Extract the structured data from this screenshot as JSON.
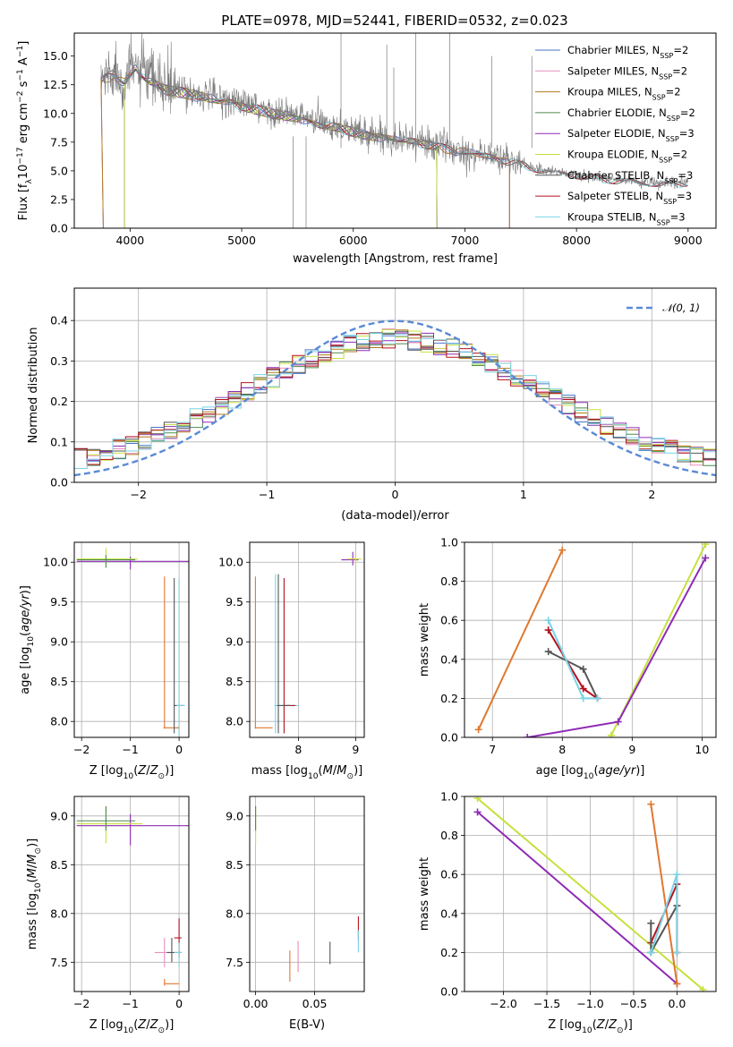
{
  "figure": {
    "title": "PLATE=0978, MJD=52441, FIBERID=0532, z=0.023"
  },
  "colors": {
    "Chabrier MILES": "#4a76c9",
    "Salpeter MILES": "#e78fbf",
    "Kroupa MILES": "#b07a1c",
    "Chabrier ELODIE": "#4e8a4e",
    "Salpeter ELODIE": "#8e2bb5",
    "Kroupa ELODIE": "#c8e040",
    "Chabrier STELIB": "#555555",
    "Salpeter STELIB": "#b3121d",
    "Kroupa STELIB": "#79d3e4",
    "data": "#7a7a7a",
    "normal": "#5a8ad6",
    "orange": "#e07830"
  },
  "chart_data": [
    {
      "type": "line",
      "id": "spectrum",
      "xlabel": "wavelength [Angstrom, rest frame]",
      "ylabel_parts": [
        "Flux [f",
        "λ",
        "10",
        "−17",
        " erg cm",
        "−2",
        " s",
        "−1",
        " A",
        "−1",
        "]"
      ],
      "xlim": [
        3500,
        9250
      ],
      "ylim": [
        0,
        17
      ],
      "xticks": [
        4000,
        5000,
        6000,
        7000,
        8000,
        9000
      ],
      "yticks": [
        0.0,
        2.5,
        5.0,
        7.5,
        10.0,
        12.5,
        15.0
      ],
      "ytick_labels": [
        "0.0",
        "2.5",
        "5.0",
        "7.5",
        "10.0",
        "12.5",
        "15.0"
      ],
      "legend_position": "top-right",
      "series": [
        {
          "name_main": "Chabrier MILES, N",
          "name_sub": "SSP",
          "name_tail": "=2",
          "key": "Chabrier MILES"
        },
        {
          "name_main": "Salpeter MILES, N",
          "name_sub": "SSP",
          "name_tail": "=2",
          "key": "Salpeter MILES"
        },
        {
          "name_main": "Kroupa MILES, N",
          "name_sub": "SSP",
          "name_tail": "=2",
          "key": "Kroupa MILES"
        },
        {
          "name_main": "Chabrier ELODIE, N",
          "name_sub": "SSP",
          "name_tail": "=2",
          "key": "Chabrier ELODIE"
        },
        {
          "name_main": "Salpeter ELODIE, N",
          "name_sub": "SSP",
          "name_tail": "=3",
          "key": "Salpeter ELODIE"
        },
        {
          "name_main": "Kroupa ELODIE, N",
          "name_sub": "SSP",
          "name_tail": "=2",
          "key": "Kroupa ELODIE"
        },
        {
          "name_main": "Chabrier STELIB, N",
          "name_sub": "SSP",
          "name_tail": "=3",
          "key": "Chabrier STELIB"
        },
        {
          "name_main": "Salpeter STELIB, N",
          "name_sub": "SSP",
          "name_tail": "=3",
          "key": "Salpeter STELIB"
        },
        {
          "name_main": "Kroupa STELIB, N",
          "name_sub": "SSP",
          "name_tail": "=3",
          "key": "Kroupa STELIB"
        }
      ],
      "data_continuum": {
        "wavelength": [
          3750,
          3850,
          3950,
          4050,
          4150,
          4300,
          4500,
          4700,
          4900,
          5100,
          5300,
          5500,
          5700,
          5900,
          6100,
          6300,
          6500,
          6700,
          6900,
          7100,
          7300,
          7500,
          7700,
          7900,
          8100,
          8300,
          8500,
          8700,
          8900,
          9000
        ],
        "flux": [
          13.0,
          13.8,
          12.9,
          14.2,
          13.1,
          12.4,
          12.0,
          11.5,
          11.2,
          10.6,
          10.1,
          9.8,
          9.2,
          8.8,
          8.3,
          8.0,
          7.7,
          7.4,
          6.9,
          6.6,
          6.2,
          5.6,
          5.1,
          4.8,
          4.5,
          4.3,
          4.1,
          3.9,
          3.9,
          4.1
        ]
      },
      "model_cutoffs": {
        "MILES_end": 7400,
        "ELODIE_end": 6750,
        "ELODIE_start": 3950,
        "STELIB_end": 9000
      }
    },
    {
      "type": "line",
      "id": "residuals",
      "subtype": "step histogram",
      "xlabel": "(data-model)/error",
      "ylabel": "Normed distribution",
      "xlim": [
        -2.5,
        2.5
      ],
      "ylim": [
        0,
        0.48
      ],
      "xticks": [
        -2,
        -1,
        0,
        1,
        2
      ],
      "xtick_labels": [
        "−2",
        "−1",
        "0",
        "1",
        "2"
      ],
      "yticks": [
        0.0,
        0.1,
        0.2,
        0.3,
        0.4
      ],
      "ytick_labels": [
        "0.0",
        "0.1",
        "0.2",
        "0.3",
        "0.4"
      ],
      "grid": true,
      "legend_position": "top-right",
      "normal_curve_label": "𝒩(0, 1)",
      "bins": [
        -2.5,
        2.5,
        50
      ]
    },
    {
      "type": "scatter",
      "id": "age-vs-Z",
      "subtype": "error bars",
      "xlabel": "Z [log10(Z/Z⊙)]",
      "ylabel": "age  [log10(age/yr)]",
      "xlim": [
        -2.15,
        0.2
      ],
      "ylim": [
        7.8,
        10.25
      ],
      "xticks": [
        -2,
        -1,
        0
      ],
      "xtick_labels": [
        "−2",
        "−1",
        "0"
      ],
      "yticks": [
        8.0,
        8.5,
        9.0,
        9.5,
        10.0
      ],
      "ytick_labels": [
        "8.0",
        "8.5",
        "9.0",
        "9.5",
        "10.0"
      ],
      "grid": true
    },
    {
      "type": "scatter",
      "id": "age-vs-mass",
      "subtype": "error bars",
      "xlabel": "mass [log10(M/M⊙)]",
      "xlim": [
        7.15,
        9.15
      ],
      "ylim": [
        7.8,
        10.25
      ],
      "xticks": [
        8,
        9
      ],
      "xtick_labels": [
        "8",
        "9"
      ],
      "yticks": [
        8.0,
        8.5,
        9.0,
        9.5,
        10.0
      ],
      "ytick_labels": [
        "8.0",
        "8.5",
        "9.0",
        "9.5",
        "10.0"
      ],
      "grid": true
    },
    {
      "type": "line",
      "id": "weight-vs-age",
      "xlabel": "age  [log10(age/yr)]",
      "ylabel": "mass weight",
      "xlim": [
        6.6,
        10.2
      ],
      "ylim": [
        0,
        1
      ],
      "xticks": [
        7,
        8,
        9,
        10
      ],
      "xtick_labels": [
        "7",
        "8",
        "9",
        "10"
      ],
      "yticks": [
        0.0,
        0.2,
        0.4,
        0.6,
        0.8,
        1.0
      ],
      "ytick_labels": [
        "0.0",
        "0.2",
        "0.4",
        "0.6",
        "0.8",
        "1.0"
      ],
      "grid": true,
      "series": [
        {
          "key": "orange",
          "x": [
            6.8,
            8.0
          ],
          "y": [
            0.04,
            0.96
          ]
        },
        {
          "key": "Kroupa ELODIE",
          "x": [
            8.7,
            10.05
          ],
          "y": [
            0.01,
            0.99
          ]
        },
        {
          "key": "Salpeter ELODIE",
          "x": [
            7.5,
            8.8,
            10.05
          ],
          "y": [
            0.0,
            0.08,
            0.92
          ]
        },
        {
          "key": "Salpeter STELIB",
          "x": [
            7.8,
            8.3,
            8.5
          ],
          "y": [
            0.55,
            0.25,
            0.2
          ]
        },
        {
          "key": "Chabrier STELIB",
          "x": [
            7.8,
            8.3,
            8.5
          ],
          "y": [
            0.44,
            0.35,
            0.2
          ]
        },
        {
          "key": "Kroupa STELIB",
          "x": [
            7.8,
            8.3,
            8.5
          ],
          "y": [
            0.6,
            0.2,
            0.2
          ]
        }
      ]
    },
    {
      "type": "scatter",
      "id": "mass-vs-Z",
      "subtype": "error bars",
      "xlabel": "Z [log10(Z/Z⊙)]",
      "ylabel": "mass [log10(M/M⊙)]",
      "xlim": [
        -2.15,
        0.2
      ],
      "ylim": [
        7.2,
        9.2
      ],
      "xticks": [
        -2,
        -1,
        0
      ],
      "xtick_labels": [
        "−2",
        "−1",
        "0"
      ],
      "yticks": [
        7.5,
        8.0,
        8.5,
        9.0
      ],
      "ytick_labels": [
        "7.5",
        "8.0",
        "8.5",
        "9.0"
      ],
      "grid": true
    },
    {
      "type": "scatter",
      "id": "mass-vs-EBV",
      "subtype": "error bars",
      "xlabel": "E(B-V)",
      "xlim": [
        -0.005,
        0.092
      ],
      "ylim": [
        7.2,
        9.2
      ],
      "xticks": [
        0.0,
        0.05
      ],
      "xtick_labels": [
        "0.00",
        "0.05"
      ],
      "yticks": [
        7.5,
        8.0,
        8.5,
        9.0
      ],
      "ytick_labels": [
        "7.5",
        "8.0",
        "8.5",
        "9.0"
      ],
      "grid": true
    },
    {
      "type": "line",
      "id": "weight-vs-Z",
      "xlabel": "Z [log10(Z/Z⊙)]",
      "ylabel": "mass weight",
      "xlim": [
        -2.45,
        0.45
      ],
      "ylim": [
        0,
        1
      ],
      "xticks": [
        -2.0,
        -1.5,
        -1.0,
        -0.5,
        0.0
      ],
      "xtick_labels": [
        "−2.0",
        "−1.5",
        "−1.0",
        "−0.5",
        "0.0"
      ],
      "yticks": [
        0.0,
        0.2,
        0.4,
        0.6,
        0.8,
        1.0
      ],
      "ytick_labels": [
        "0.0",
        "0.2",
        "0.4",
        "0.6",
        "0.8",
        "1.0"
      ],
      "grid": true,
      "series": [
        {
          "key": "Kroupa ELODIE",
          "x": [
            -2.3,
            0.3
          ],
          "y": [
            0.99,
            0.01
          ]
        },
        {
          "key": "Salpeter ELODIE",
          "x": [
            -2.3,
            0.0
          ],
          "y": [
            0.92,
            0.04
          ]
        },
        {
          "key": "orange",
          "x": [
            -0.3,
            0.0
          ],
          "y": [
            0.96,
            0.04
          ]
        },
        {
          "key": "Salpeter STELIB",
          "x": [
            -0.3,
            0.0,
            0.0
          ],
          "y": [
            0.25,
            0.55,
            0.2
          ]
        },
        {
          "key": "Chabrier STELIB",
          "x": [
            -0.3,
            -0.3,
            0.0
          ],
          "y": [
            0.35,
            0.2,
            0.44
          ]
        },
        {
          "key": "Kroupa STELIB",
          "x": [
            -0.3,
            0.0,
            0.0
          ],
          "y": [
            0.2,
            0.6,
            0.2
          ]
        }
      ]
    }
  ]
}
